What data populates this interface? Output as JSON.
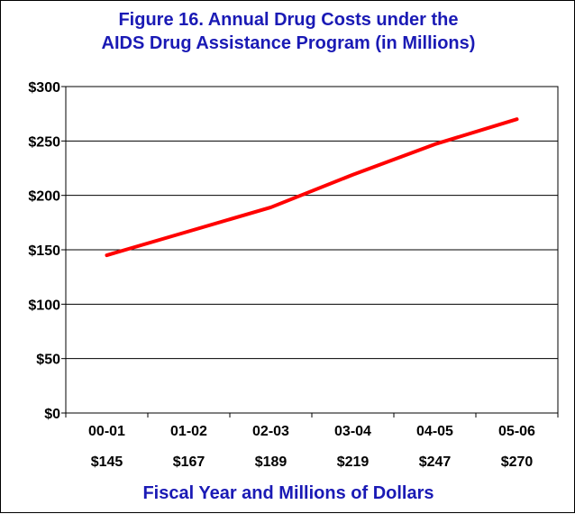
{
  "chart_data": {
    "type": "line",
    "title_lines": [
      "Figure 16. Annual Drug Costs under the",
      "AIDS Drug Assistance Program (in Millions)"
    ],
    "xlabel": "Fiscal Year and Millions of Dollars",
    "ylabel": "",
    "categories": [
      "00-01",
      "01-02",
      "02-03",
      "03-04",
      "04-05",
      "05-06"
    ],
    "category_value_labels": [
      "$145",
      "$167",
      "$189",
      "$219",
      "$247",
      "$270"
    ],
    "series": [
      {
        "values": [
          145,
          167,
          189,
          219,
          247,
          270
        ],
        "color": "#ff0000"
      }
    ],
    "ylim": [
      0,
      300
    ],
    "y_ticks": [
      0,
      50,
      100,
      150,
      200,
      250,
      300
    ],
    "y_tick_labels": [
      "$0",
      "$50",
      "$100",
      "$150",
      "$200",
      "$250",
      "$300"
    ],
    "grid": true,
    "legend": "none",
    "title_color": "#1a1ab5"
  }
}
